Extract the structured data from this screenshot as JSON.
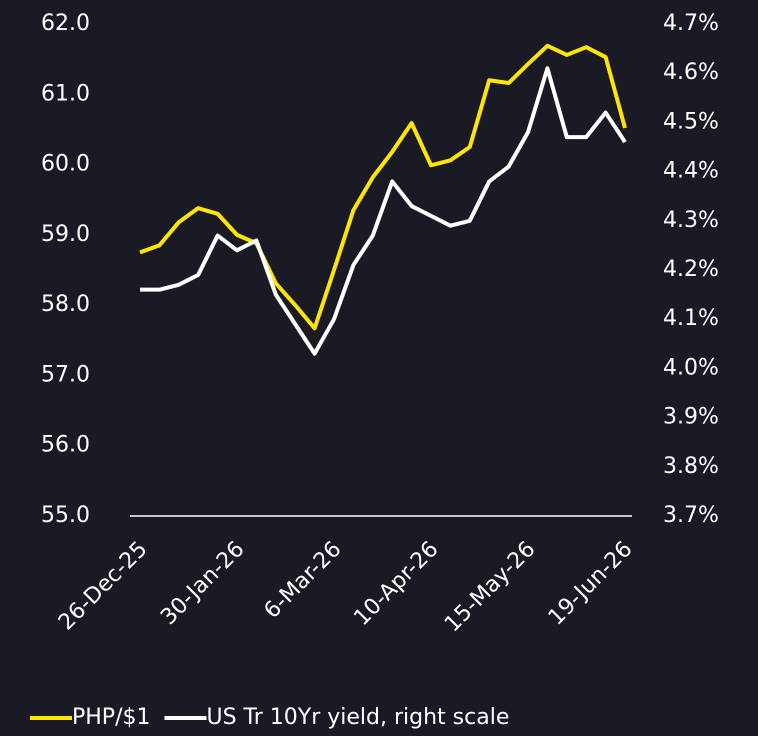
{
  "chart_data": {
    "type": "line",
    "categories": [
      "26-Dec-25",
      null,
      null,
      null,
      null,
      "30-Jan-26",
      null,
      null,
      null,
      null,
      "6-Mar-26",
      null,
      null,
      null,
      null,
      "10-Apr-26",
      null,
      null,
      null,
      null,
      "15-May-26",
      null,
      null,
      null,
      null,
      "19-Jun-26"
    ],
    "series": [
      {
        "name": "PHP/$1",
        "color": "#ffe600",
        "values": [
          58.75,
          58.85,
          59.18,
          59.38,
          59.3,
          59.0,
          58.88,
          58.31,
          58.0,
          57.67,
          58.5,
          59.35,
          59.82,
          60.18,
          60.59,
          59.99,
          60.06,
          60.25,
          61.2,
          61.16,
          61.43,
          61.69,
          61.56,
          61.67,
          61.53,
          60.52
        ]
      },
      {
        "name": "US Tr 10Yr yield, right scale",
        "color": "#ffffff",
        "axis": "y2",
        "values": [
          4.16,
          4.16,
          4.17,
          4.19,
          4.27,
          4.24,
          4.26,
          4.15,
          4.09,
          4.03,
          4.1,
          4.21,
          4.27,
          4.38,
          4.33,
          4.31,
          4.29,
          4.3,
          4.38,
          4.41,
          4.48,
          4.61,
          4.47,
          4.47,
          4.52,
          4.46
        ]
      }
    ],
    "ylim": [
      55,
      62
    ],
    "yticks": [
      {
        "value": 55,
        "label": "55.0"
      },
      {
        "value": 56,
        "label": "56.0"
      },
      {
        "value": 57,
        "label": "57.0"
      },
      {
        "value": 58,
        "label": "58.0"
      },
      {
        "value": 59,
        "label": "59.0"
      },
      {
        "value": 60,
        "label": "60.0"
      },
      {
        "value": 61,
        "label": "61.0"
      },
      {
        "value": 62,
        "label": "62.0"
      }
    ],
    "y2lim": [
      3.7,
      4.7
    ],
    "y2ticks": [
      {
        "value": 3.7,
        "label": "3.7%"
      },
      {
        "value": 3.8,
        "label": "3.8%"
      },
      {
        "value": 3.9,
        "label": "3.9%"
      },
      {
        "value": 4.0,
        "label": "4.0%"
      },
      {
        "value": 4.1,
        "label": "4.1%"
      },
      {
        "value": 4.2,
        "label": "4.2%"
      },
      {
        "value": 4.3,
        "label": "4.3%"
      },
      {
        "value": 4.4,
        "label": "4.4%"
      },
      {
        "value": 4.5,
        "label": "4.5%"
      },
      {
        "value": 4.6,
        "label": "4.6%"
      },
      {
        "value": 4.7,
        "label": "4.7%"
      }
    ],
    "legend": "bottom",
    "grid": false
  }
}
